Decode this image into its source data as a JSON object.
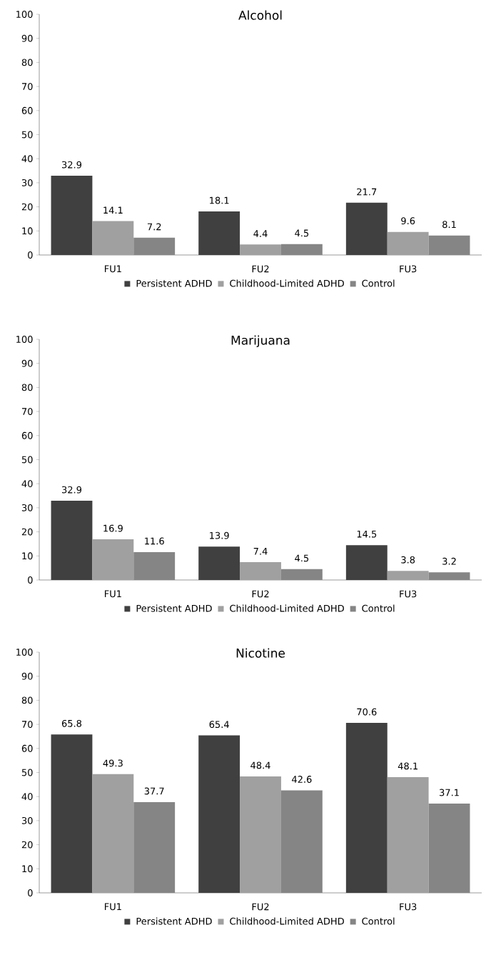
{
  "chart_data": [
    {
      "type": "bar",
      "title": "Alcohol",
      "categories": [
        "FU1",
        "FU2",
        "FU3"
      ],
      "series": [
        {
          "name": "Persistent ADHD",
          "color": "#404040",
          "values": [
            32.9,
            18.1,
            21.7
          ]
        },
        {
          "name": "Childhood-Limited ADHD",
          "color": "#a0a0a0",
          "values": [
            14.1,
            4.4,
            9.6
          ]
        },
        {
          "name": "Control",
          "color": "#858585",
          "values": [
            7.2,
            4.5,
            8.1
          ]
        }
      ],
      "ylim": [
        0,
        100
      ],
      "yticks": [
        0,
        10,
        20,
        30,
        40,
        50,
        60,
        70,
        80,
        90,
        100
      ],
      "data_labels": true,
      "legend": "bottom",
      "grid": false
    },
    {
      "type": "bar",
      "title": "Marijuana",
      "categories": [
        "FU1",
        "FU2",
        "FU3"
      ],
      "series": [
        {
          "name": "Persistent ADHD",
          "color": "#404040",
          "values": [
            32.9,
            13.9,
            14.5
          ]
        },
        {
          "name": "Childhood-Limited ADHD",
          "color": "#a0a0a0",
          "values": [
            16.9,
            7.4,
            3.8
          ]
        },
        {
          "name": "Control",
          "color": "#858585",
          "values": [
            11.6,
            4.5,
            3.2
          ]
        }
      ],
      "ylim": [
        0,
        100
      ],
      "yticks": [
        0,
        10,
        20,
        30,
        40,
        50,
        60,
        70,
        80,
        90,
        100
      ],
      "data_labels": true,
      "legend": "bottom",
      "grid": false
    },
    {
      "type": "bar",
      "title": "Nicotine",
      "categories": [
        "FU1",
        "FU2",
        "FU3"
      ],
      "series": [
        {
          "name": "Persistent ADHD",
          "color": "#404040",
          "values": [
            65.8,
            65.4,
            70.6
          ]
        },
        {
          "name": "Childhood-Limited ADHD",
          "color": "#a0a0a0",
          "values": [
            49.3,
            48.4,
            48.1
          ]
        },
        {
          "name": "Control",
          "color": "#858585",
          "values": [
            37.7,
            42.6,
            37.1
          ]
        }
      ],
      "ylim": [
        0,
        100
      ],
      "yticks": [
        0,
        10,
        20,
        30,
        40,
        50,
        60,
        70,
        80,
        90,
        100
      ],
      "data_labels": true,
      "legend": "bottom",
      "grid": false
    }
  ]
}
